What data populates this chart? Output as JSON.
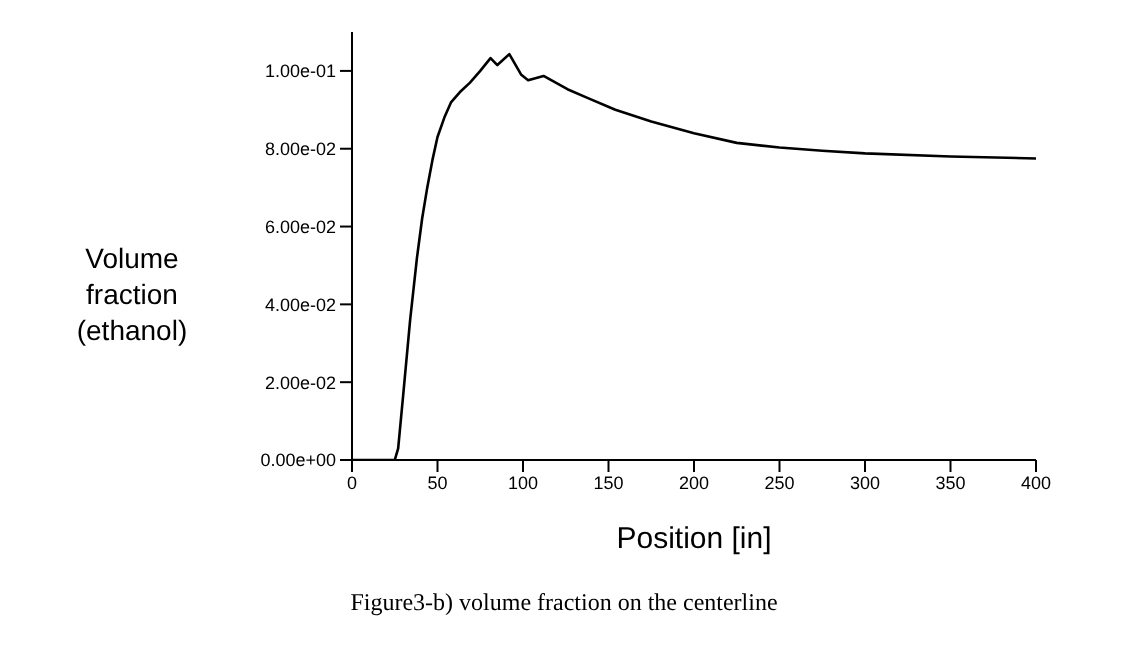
{
  "chart_data": {
    "type": "line",
    "xlabel": "Position [in]",
    "ylabel": "Volume fraction (ethanol)",
    "annotations": [
      "Figure3-b) volume fraction on the centerline"
    ],
    "x": [
      0,
      10,
      20,
      25,
      27,
      30,
      34,
      38,
      41,
      44,
      47,
      50,
      54,
      58,
      63,
      69,
      75,
      81,
      85,
      92,
      99,
      103,
      112,
      126,
      138,
      154,
      175,
      200,
      225,
      250,
      275,
      300,
      350,
      400
    ],
    "series": [
      {
        "color": "#000000",
        "values": [
          0,
          0,
          0,
          0,
          0.003,
          0.017,
          0.036,
          0.052,
          0.062,
          0.07,
          0.077,
          0.083,
          0.088,
          0.092,
          0.0945,
          0.097,
          0.1,
          0.1033,
          0.1015,
          0.1043,
          0.099,
          0.0976,
          0.0987,
          0.0953,
          0.093,
          0.09,
          0.087,
          0.084,
          0.0815,
          0.0803,
          0.0795,
          0.0788,
          0.078,
          0.0775
        ]
      }
    ],
    "xlim": [
      0,
      400
    ],
    "xticks": [
      0,
      50,
      100,
      150,
      200,
      250,
      300,
      350,
      400
    ],
    "ylim": [
      0,
      0.11
    ],
    "yticks": [
      {
        "value": 0,
        "label": "0.00e+00"
      },
      {
        "value": 0.02,
        "label": "2.00e-02"
      },
      {
        "value": 0.04,
        "label": "4.00e-02"
      },
      {
        "value": 0.06,
        "label": "6.00e-02"
      },
      {
        "value": 0.08,
        "label": "8.00e-02"
      },
      {
        "value": 0.1,
        "label": "1.00e-01"
      }
    ],
    "grid": false,
    "marker": "none",
    "line_style": "solid"
  }
}
